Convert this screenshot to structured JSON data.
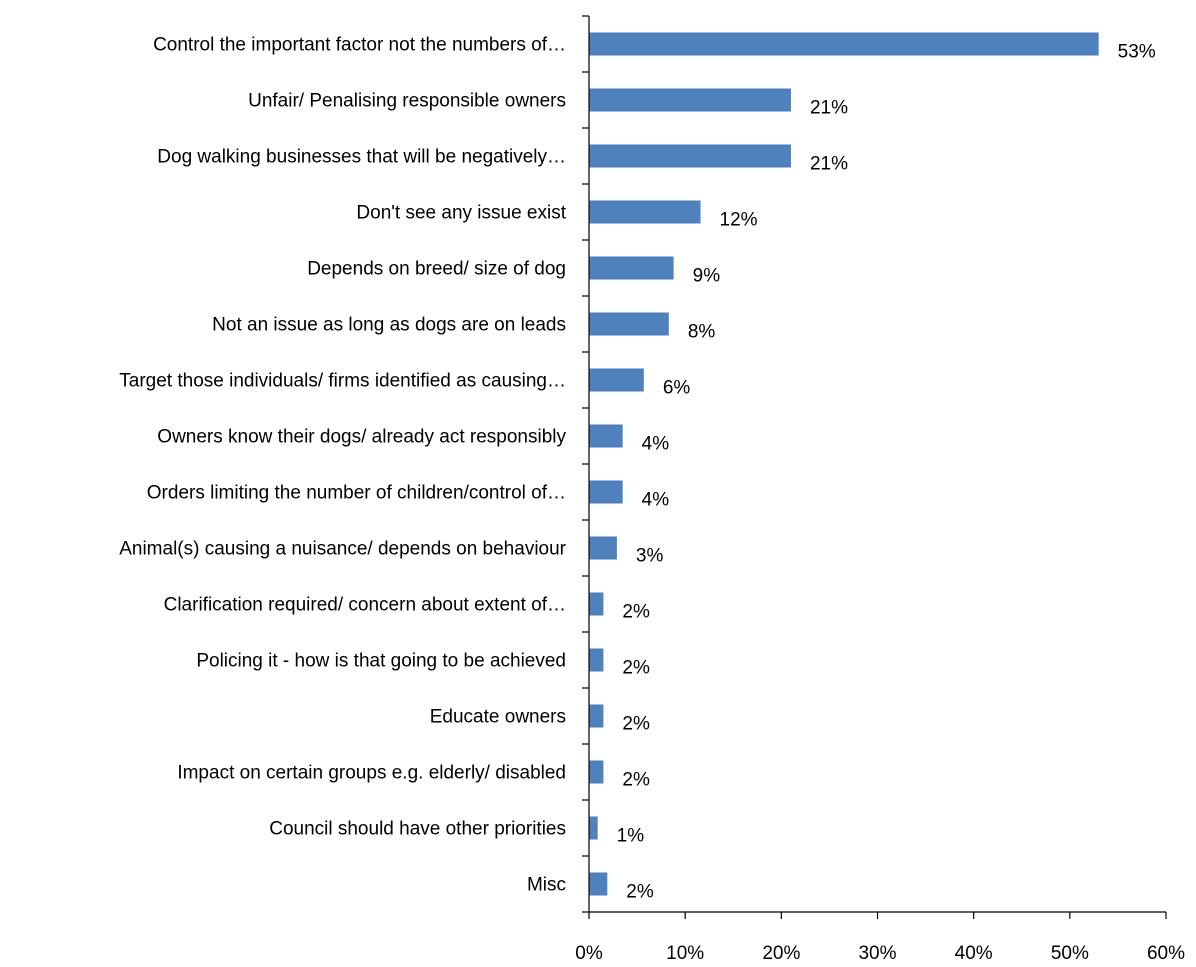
{
  "chart_data": {
    "type": "bar",
    "orientation": "horizontal",
    "bar_color": "#4F81BD",
    "categories": [
      "Control the important factor not the numbers of…",
      "Unfair/ Penalising responsible owners",
      "Dog walking businesses that will be negatively…",
      "Don't see any issue exist",
      "Depends on breed/ size of dog",
      "Not an issue as long as dogs are on leads",
      "Target those individuals/ firms identified as causing…",
      "Owners know their dogs/ already act responsibly",
      "Orders limiting the number of children/control of…",
      "Animal(s) causing a nuisance/ depends on behaviour",
      "Clarification required/ concern about extent of…",
      "Policing it - how is that going to be achieved",
      "Educate owners",
      "Impact on certain groups e.g. elderly/ disabled",
      "Council should have other priorities",
      "Misc"
    ],
    "values": [
      53,
      21,
      21,
      12,
      9,
      8,
      6,
      4,
      4,
      3,
      2,
      2,
      2,
      2,
      1,
      2
    ],
    "value_labels": [
      "53%",
      "21%",
      "21%",
      "12%",
      "9%",
      "8%",
      "6%",
      "4%",
      "4%",
      "3%",
      "2%",
      "2%",
      "2%",
      "2%",
      "1%",
      "2%"
    ],
    "display_values": [
      53,
      21,
      21,
      11.6,
      8.8,
      8.3,
      5.7,
      3.5,
      3.5,
      2.9,
      1.5,
      1.5,
      1.5,
      1.5,
      0.9,
      1.9
    ],
    "xlim": [
      0,
      60
    ],
    "x_ticks": [
      0,
      10,
      20,
      30,
      40,
      50,
      60
    ],
    "x_tick_labels": [
      "0%",
      "10%",
      "20%",
      "30%",
      "40%",
      "50%",
      "60%"
    ],
    "grid": false
  }
}
